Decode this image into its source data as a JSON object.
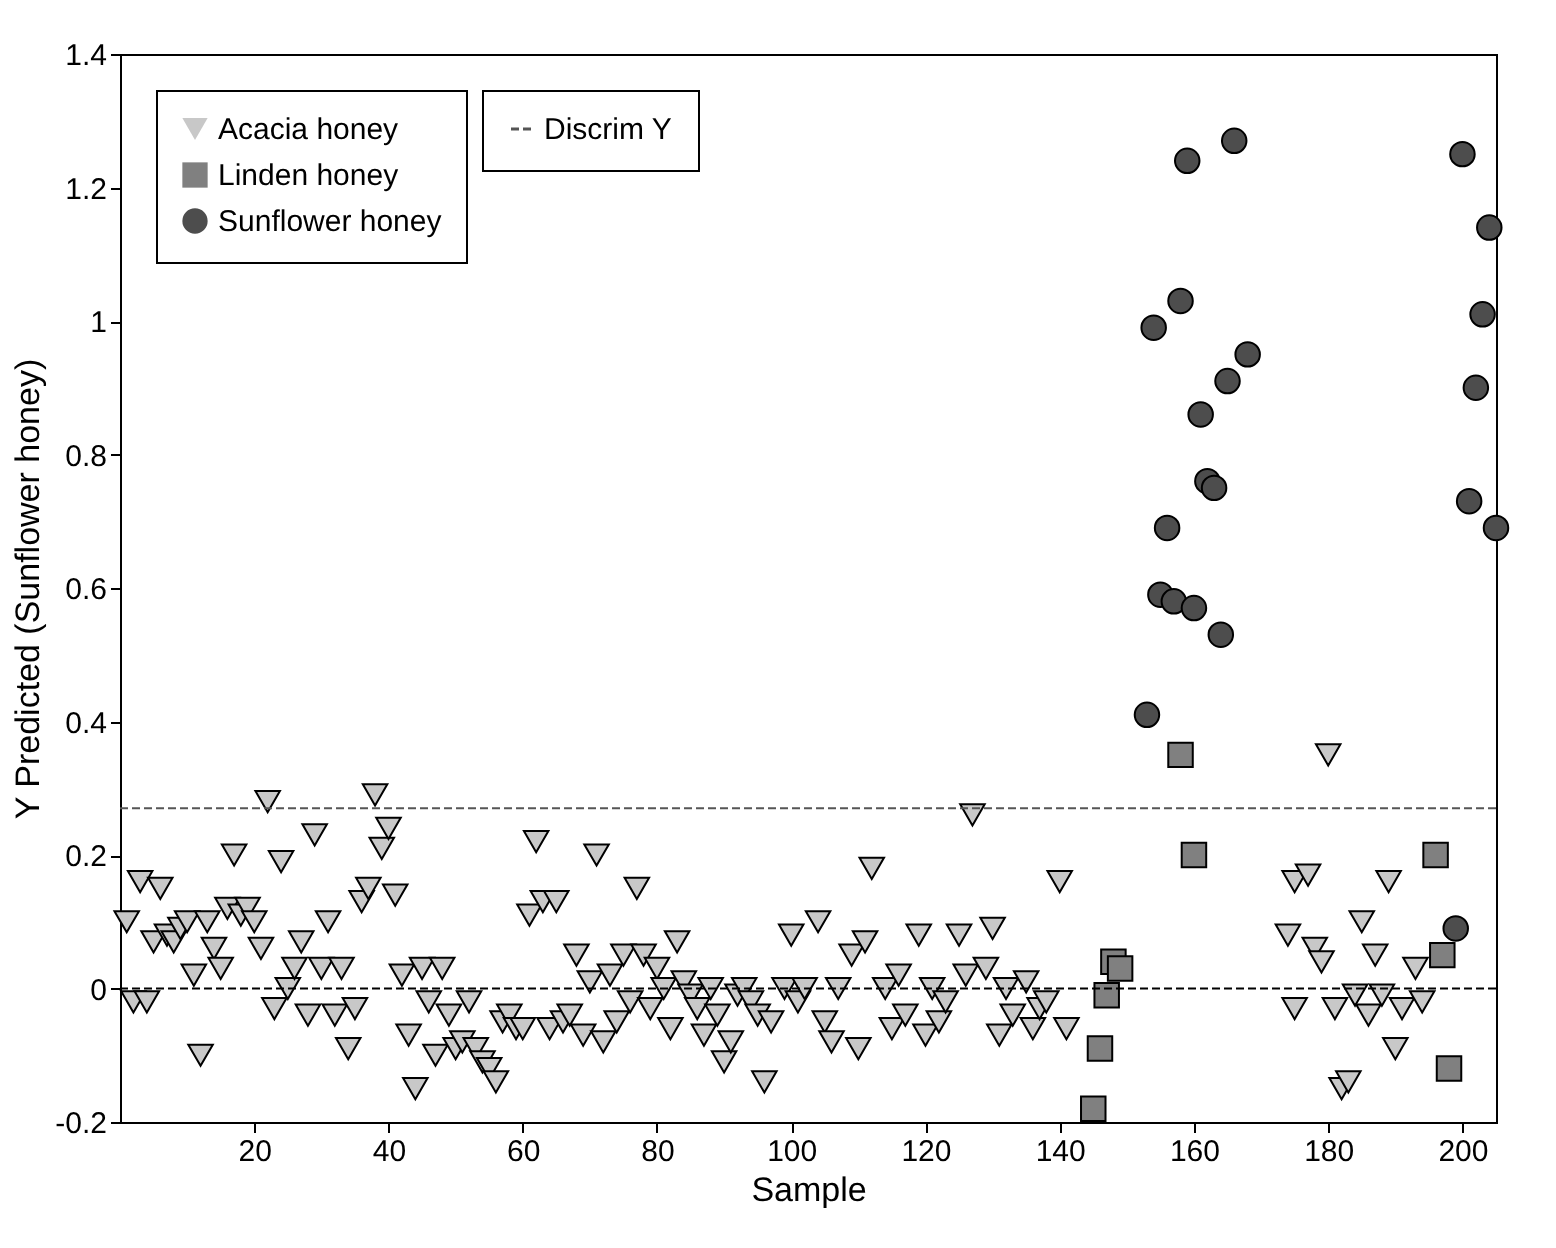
{
  "chart_data": {
    "type": "scatter",
    "xlabel": "Sample",
    "ylabel": "Y Predicted (Sunflower honey)",
    "xlim": [
      0,
      205
    ],
    "xticks": [
      20,
      40,
      60,
      80,
      100,
      120,
      140,
      160,
      180,
      200
    ],
    "ylim": [
      -0.2,
      1.4
    ],
    "yticks": [
      -0.2,
      0,
      0.2,
      0.4,
      0.6,
      0.8,
      1,
      1.2,
      1.4
    ],
    "grid": false,
    "legend": "top left",
    "series": [
      {
        "name": "Acacia honey",
        "color": "#c8c8c8",
        "marker": "triangle",
        "x": [
          1,
          2,
          3,
          4,
          5,
          6,
          7,
          8,
          9,
          10,
          11,
          12,
          13,
          14,
          15,
          16,
          17,
          18,
          19,
          20,
          21,
          22,
          23,
          24,
          25,
          26,
          27,
          28,
          29,
          30,
          31,
          32,
          33,
          34,
          35,
          36,
          37,
          38,
          39,
          40,
          41,
          42,
          43,
          44,
          45,
          46,
          47,
          48,
          49,
          50,
          51,
          52,
          53,
          54,
          55,
          56,
          57,
          58,
          59,
          60,
          61,
          62,
          63,
          64,
          65,
          66,
          67,
          68,
          69,
          70,
          71,
          72,
          73,
          74,
          75,
          76,
          77,
          78,
          79,
          80,
          81,
          82,
          83,
          84,
          85,
          86,
          87,
          88,
          89,
          90,
          91,
          92,
          93,
          94,
          95,
          96,
          97,
          99,
          100,
          101,
          102,
          104,
          105,
          106,
          107,
          109,
          110,
          111,
          112,
          114,
          115,
          116,
          117,
          119,
          120,
          121,
          122,
          123,
          125,
          126,
          127,
          129,
          130,
          131,
          132,
          133,
          135,
          136,
          137,
          138,
          140,
          141,
          174,
          175,
          175,
          177,
          178,
          179,
          180,
          181,
          182,
          183,
          184,
          185,
          186,
          187,
          188,
          189,
          190,
          191,
          193,
          194
        ],
        "values": [
          0.1,
          -0.02,
          0.16,
          -0.02,
          0.07,
          0.15,
          0.08,
          0.07,
          0.09,
          0.1,
          0.02,
          -0.1,
          0.1,
          0.06,
          0.03,
          0.12,
          0.2,
          0.11,
          0.12,
          0.1,
          0.06,
          0.28,
          -0.03,
          0.19,
          0.0,
          0.03,
          0.07,
          -0.04,
          0.23,
          0.03,
          0.1,
          -0.04,
          0.03,
          -0.09,
          -0.03,
          0.13,
          0.15,
          0.29,
          0.21,
          0.24,
          0.14,
          0.02,
          -0.07,
          -0.15,
          0.03,
          -0.02,
          -0.1,
          0.03,
          -0.04,
          -0.09,
          -0.08,
          -0.02,
          -0.09,
          -0.11,
          -0.12,
          -0.14,
          -0.05,
          -0.04,
          -0.06,
          -0.06,
          0.11,
          0.22,
          0.13,
          -0.06,
          0.13,
          -0.05,
          -0.04,
          0.05,
          -0.07,
          0.01,
          0.2,
          -0.08,
          0.02,
          -0.05,
          0.05,
          -0.02,
          0.15,
          0.05,
          -0.03,
          0.03,
          0.0,
          -0.06,
          0.07,
          0.01,
          -0.01,
          -0.03,
          -0.07,
          0.0,
          -0.04,
          -0.11,
          -0.08,
          -0.01,
          0.0,
          -0.02,
          -0.04,
          -0.14,
          -0.05,
          0.0,
          0.08,
          -0.02,
          0.0,
          0.1,
          -0.05,
          -0.08,
          0.0,
          0.05,
          -0.09,
          0.07,
          0.18,
          0.0,
          -0.06,
          0.02,
          -0.04,
          0.08,
          -0.07,
          0.0,
          -0.05,
          -0.02,
          0.08,
          0.02,
          0.26,
          0.03,
          0.09,
          -0.07,
          0.0,
          -0.04,
          0.01,
          -0.06,
          -0.03,
          -0.02,
          0.16,
          -0.06,
          0.08,
          -0.03,
          0.16,
          0.17,
          0.06,
          0.04,
          0.35,
          -0.03,
          -0.15,
          -0.14,
          -0.01,
          0.1,
          -0.04,
          0.05,
          -0.01,
          0.16,
          -0.09,
          -0.03,
          0.03,
          -0.02
        ]
      },
      {
        "name": "Linden honey",
        "color": "#808080",
        "marker": "square",
        "x": [
          145,
          146,
          147,
          148,
          149,
          158,
          160,
          196,
          197,
          198
        ],
        "values": [
          -0.18,
          -0.09,
          -0.01,
          0.04,
          0.03,
          0.35,
          0.2,
          0.2,
          0.05,
          -0.12
        ]
      },
      {
        "name": "Sunflower honey",
        "color": "#4d4d4d",
        "marker": "circle",
        "x": [
          153,
          154,
          155,
          156,
          157,
          158,
          159,
          160,
          161,
          162,
          163,
          164,
          165,
          166,
          168,
          199,
          200,
          201,
          202,
          203,
          204,
          205
        ],
        "values": [
          0.41,
          0.99,
          0.59,
          0.69,
          0.58,
          1.03,
          1.24,
          0.57,
          0.86,
          0.76,
          0.75,
          0.53,
          0.91,
          1.27,
          0.95,
          0.09,
          1.25,
          0.73,
          0.9,
          1.01,
          1.14,
          0.69
        ]
      }
    ],
    "ref_lines": [
      {
        "axis": "y",
        "value": 0.27,
        "label": "Discrim Y",
        "color": "#555555",
        "line_style": "dashed"
      },
      {
        "axis": "y",
        "value": 0,
        "color": "#000000",
        "line_style": "dashed"
      }
    ]
  }
}
